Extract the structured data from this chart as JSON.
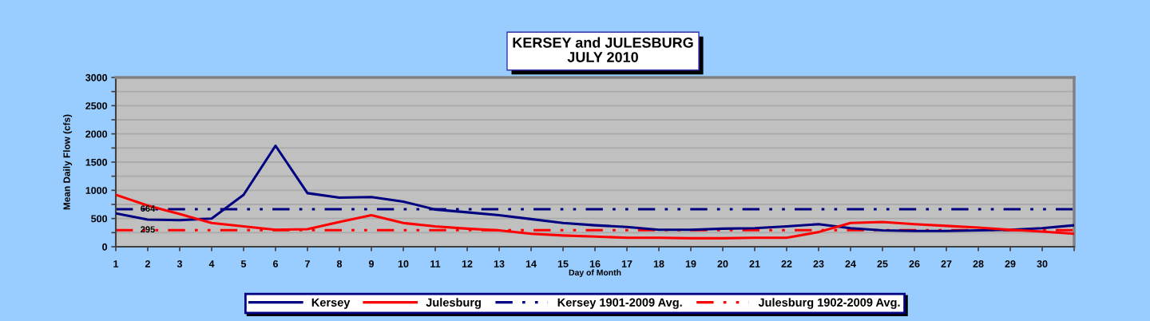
{
  "chart_data": {
    "type": "line",
    "title": "KERSEY and JULESBURG\nJULY 2010",
    "xlabel": "Day of Month",
    "ylabel": "Mean Daily Flow (cfs)",
    "x": [
      1,
      2,
      3,
      4,
      5,
      6,
      7,
      8,
      9,
      10,
      11,
      12,
      13,
      14,
      15,
      16,
      17,
      18,
      19,
      20,
      21,
      22,
      23,
      24,
      25,
      26,
      27,
      28,
      29,
      30,
      31
    ],
    "series": [
      {
        "name": "Kersey",
        "color": "#000080",
        "values": [
          590,
          480,
          470,
          500,
          920,
          1790,
          950,
          870,
          880,
          800,
          660,
          610,
          560,
          490,
          420,
          380,
          350,
          300,
          300,
          320,
          330,
          360,
          400,
          330,
          290,
          280,
          280,
          290,
          300,
          330,
          380
        ]
      },
      {
        "name": "Julesburg",
        "color": "#ff0000",
        "values": [
          920,
          730,
          580,
          420,
          360,
          300,
          310,
          440,
          560,
          420,
          360,
          320,
          290,
          230,
          200,
          180,
          160,
          160,
          150,
          150,
          160,
          160,
          260,
          420,
          440,
          400,
          370,
          340,
          300,
          270,
          230
        ]
      }
    ],
    "ref_lines": [
      {
        "axis": "y",
        "value": 664,
        "label": "Kersey 1901-2009 Avg.",
        "color": "#000080",
        "line_style": "dashdotdot"
      },
      {
        "axis": "y",
        "value": 295,
        "label": "Julesburg 1902-2009 Avg.",
        "color": "#ff0000",
        "line_style": "dashdotdot"
      }
    ],
    "annotations": [
      {
        "text": "664",
        "x": 2,
        "y": 664
      },
      {
        "text": "295",
        "x": 2,
        "y": 295
      }
    ],
    "xlim": [
      1,
      31
    ],
    "xticks": [
      1,
      2,
      3,
      4,
      5,
      6,
      7,
      8,
      9,
      10,
      11,
      12,
      13,
      14,
      15,
      16,
      17,
      18,
      19,
      20,
      21,
      22,
      23,
      24,
      25,
      26,
      27,
      28,
      29,
      30,
      {
        "value": 31,
        "label": null
      }
    ],
    "ylim": [
      0,
      3000
    ],
    "yticks": [
      0,
      {
        "value": 250,
        "label": null
      },
      500,
      {
        "value": 750,
        "label": null
      },
      1000,
      {
        "value": 1250,
        "label": null
      },
      1500,
      {
        "value": 1750,
        "label": null
      },
      2000,
      {
        "value": 2250,
        "label": null
      },
      2500,
      {
        "value": 2750,
        "label": null
      },
      3000
    ],
    "grid": "y",
    "legend": "bottom",
    "line_style": "solid",
    "marker": "none"
  }
}
